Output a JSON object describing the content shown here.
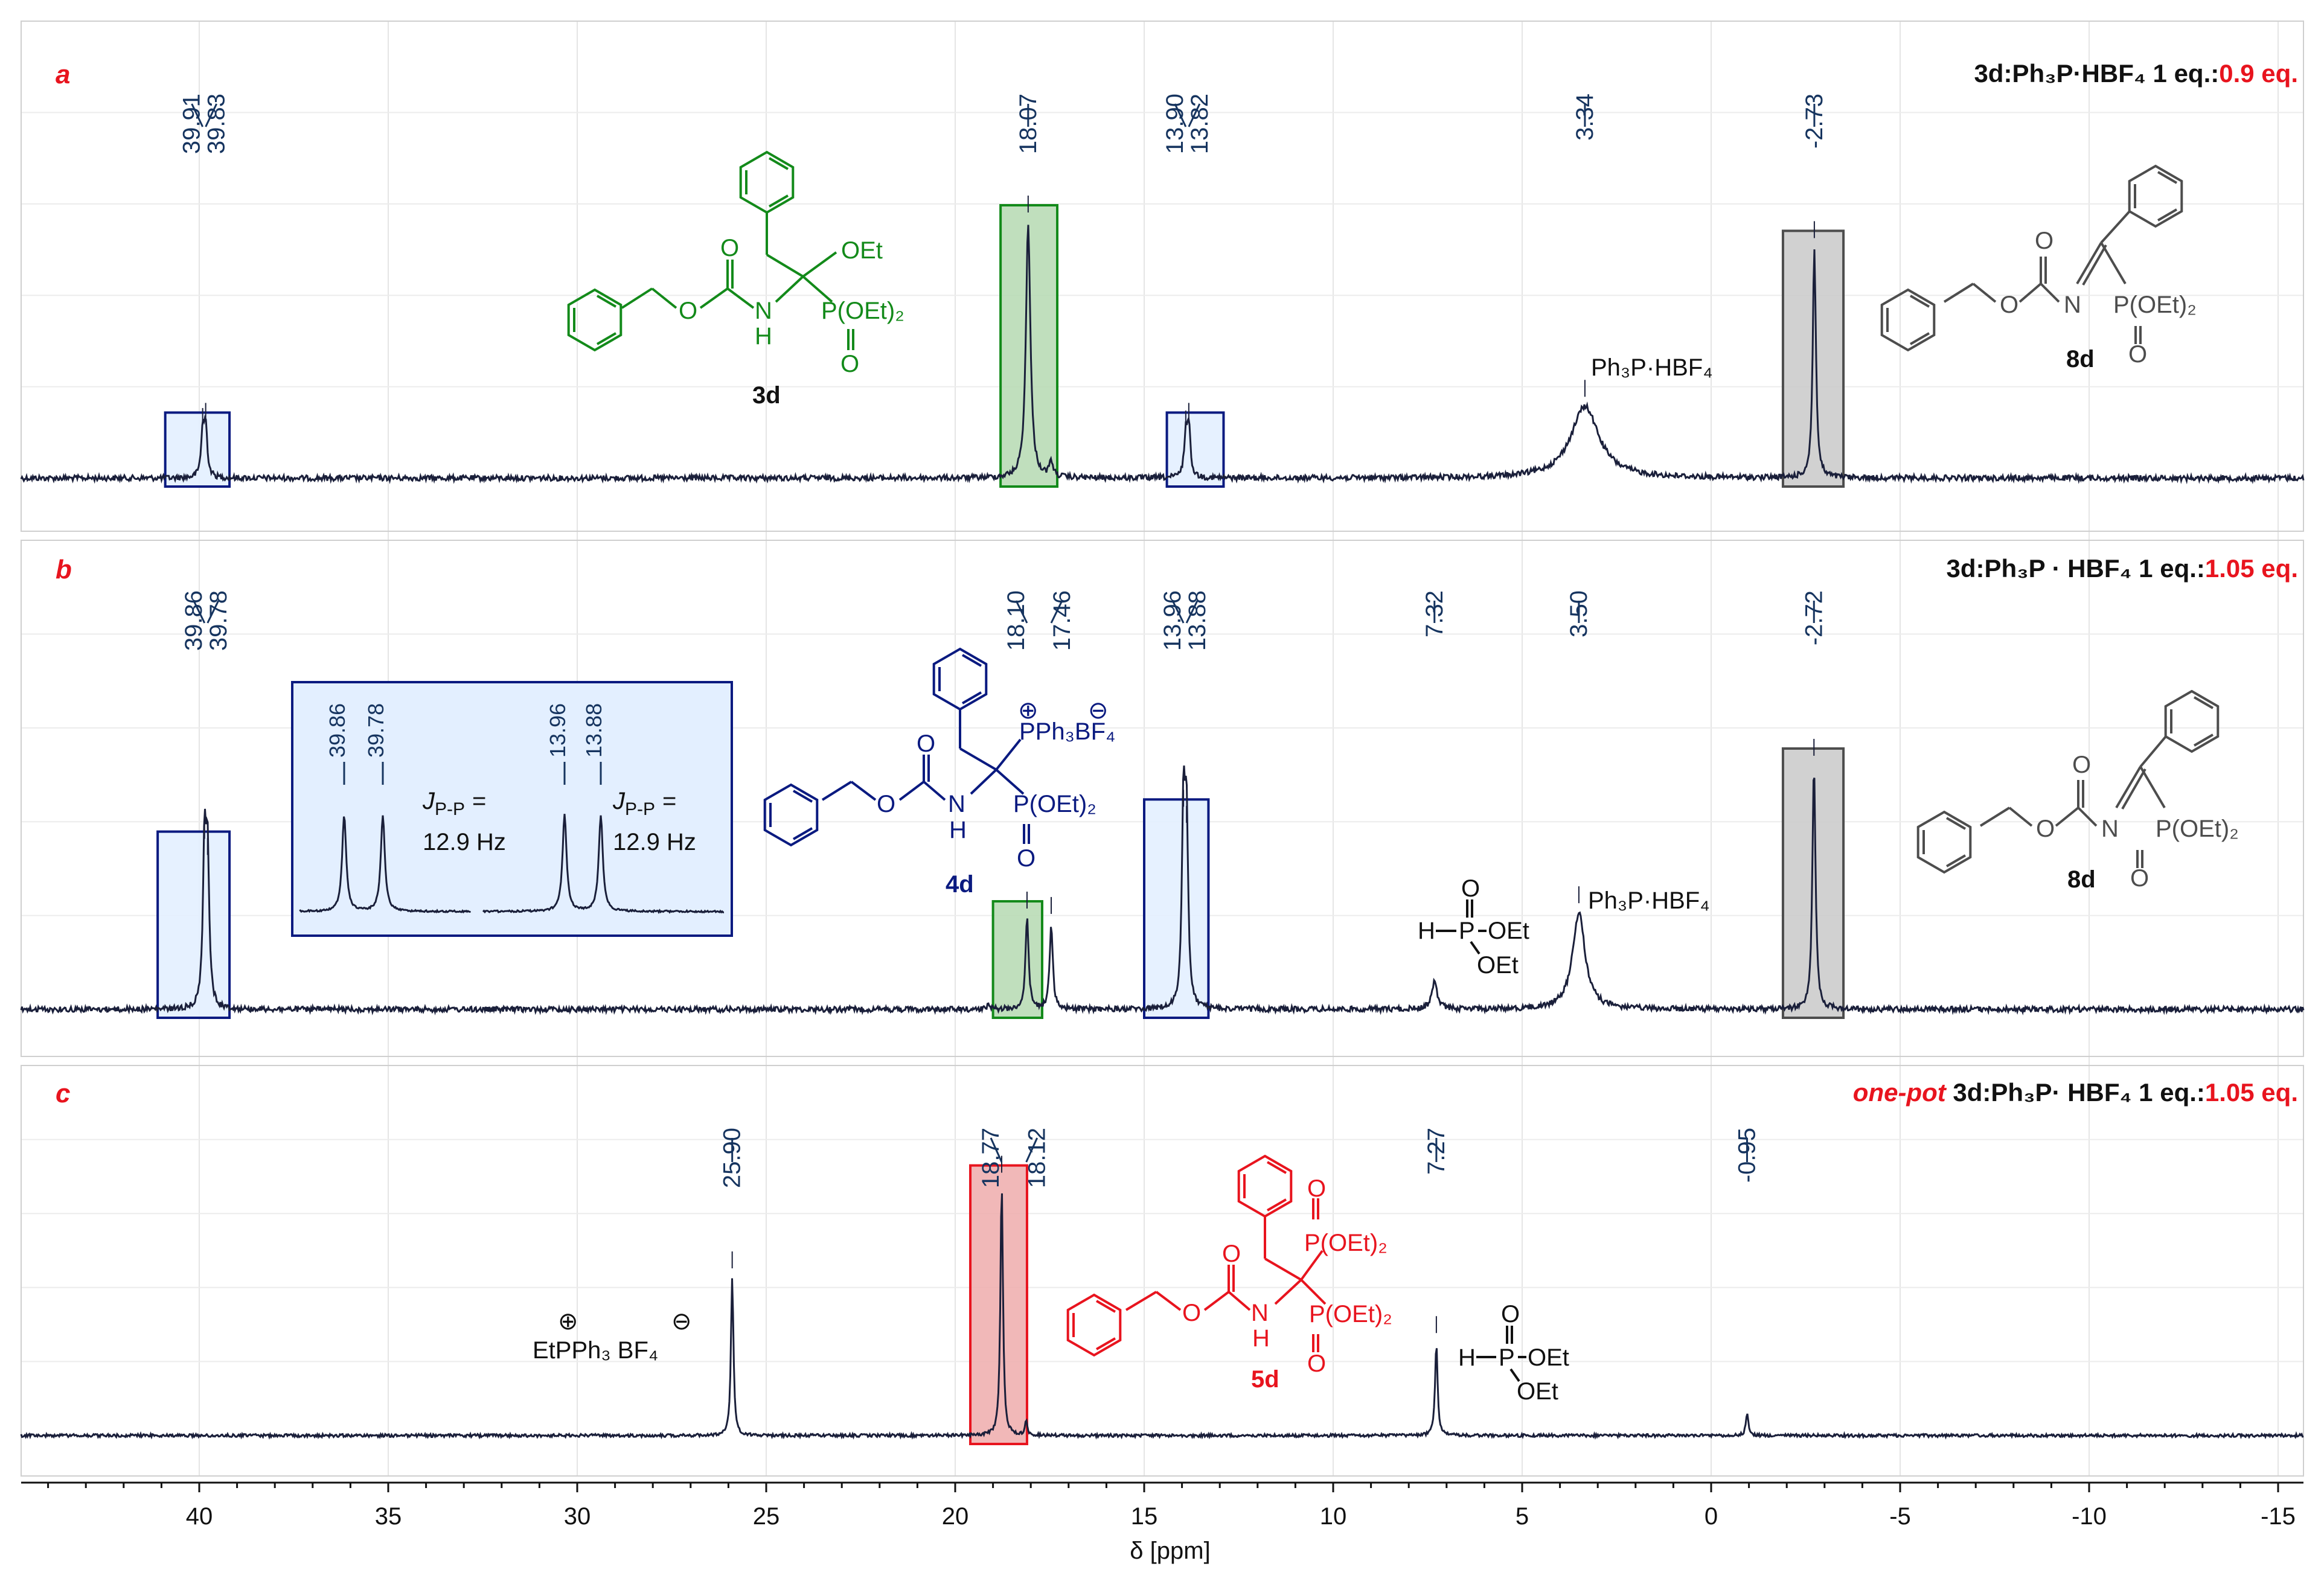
{
  "chart_data": {
    "type": "line",
    "xlabel": "δ [ppm]",
    "xlim": [
      45,
      -16
    ],
    "xticks": [
      "40",
      "35",
      "30",
      "25",
      "20",
      "15",
      "10",
      "5",
      "0",
      "-5",
      "-10",
      "-15"
    ],
    "xtick_values": [
      40,
      35,
      30,
      25,
      20,
      15,
      10,
      5,
      0,
      -5,
      -10,
      -15
    ],
    "grid": true,
    "colors": {
      "trace": "#1a1f3a",
      "navy": "#0a1a80",
      "green": "#138a1a",
      "red": "#e8141e",
      "gray": "#4d4d4d",
      "green_fill": "#b9dcb6",
      "gray_fill": "#cccccc",
      "red_fill": "#f0b0b0",
      "blue_fill": "#e3efff",
      "label_blue": "#16345f"
    },
    "panels": [
      {
        "letter": "a",
        "condition_prefix": "",
        "condition_main": "3d:Ph₃P·HBF₄ 1 eq.:",
        "condition_eq": "0.9 eq.",
        "peak_labels": [
          "39.91",
          "39.83",
          "18.07",
          "13.90",
          "13.82",
          "3.34",
          "-2.73"
        ],
        "peaks": [
          {
            "ppm": 39.91,
            "height": 0.17,
            "width": 0.05
          },
          {
            "ppm": 39.83,
            "height": 0.19,
            "width": 0.05
          },
          {
            "ppm": 18.07,
            "height": 1.0,
            "width": 0.07
          },
          {
            "ppm": 17.46,
            "height": 0.06,
            "width": 0.06
          },
          {
            "ppm": 13.9,
            "height": 0.16,
            "width": 0.05
          },
          {
            "ppm": 13.82,
            "height": 0.19,
            "width": 0.05
          },
          {
            "ppm": 3.34,
            "height": 0.28,
            "width": 0.45
          },
          {
            "ppm": -2.73,
            "height": 0.9,
            "width": 0.05
          }
        ],
        "highlights": [
          {
            "from": 40.9,
            "to": 39.2,
            "style": "blue"
          },
          {
            "from": 18.8,
            "to": 17.3,
            "style": "green"
          },
          {
            "from": 14.4,
            "to": 12.9,
            "style": "blue"
          },
          {
            "from": -1.9,
            "to": -3.5,
            "style": "gray"
          }
        ],
        "annotations": {
          "salt": "Ph₃P·HBF₄"
        },
        "structures": [
          {
            "label": "3d",
            "substituents": [
              "OEt",
              "P(OEt)₂",
              "O",
              "O",
              "O",
              "N",
              "H"
            ]
          },
          {
            "label": "8d",
            "substituents": [
              "O",
              "O",
              "N",
              "P(OEt)₂",
              "O"
            ]
          }
        ]
      },
      {
        "letter": "b",
        "condition_prefix": "",
        "condition_main": "3d:Ph₃P · HBF₄ 1 eq.:",
        "condition_eq": "1.05 eq.",
        "peak_labels": [
          "39.86",
          "39.78",
          "18.10",
          "17.46",
          "13.96",
          "13.88",
          "7.32",
          "3.50",
          "-2.72"
        ],
        "peaks": [
          {
            "ppm": 39.86,
            "height": 0.6,
            "width": 0.05
          },
          {
            "ppm": 39.78,
            "height": 0.54,
            "width": 0.05
          },
          {
            "ppm": 18.1,
            "height": 0.34,
            "width": 0.05
          },
          {
            "ppm": 17.46,
            "height": 0.32,
            "width": 0.05
          },
          {
            "ppm": 19.1,
            "height": 0.02,
            "width": 0.05
          },
          {
            "ppm": 13.96,
            "height": 0.72,
            "width": 0.05
          },
          {
            "ppm": 13.88,
            "height": 0.66,
            "width": 0.05
          },
          {
            "ppm": 7.32,
            "height": 0.1,
            "width": 0.09
          },
          {
            "ppm": 3.5,
            "height": 0.36,
            "width": 0.2
          },
          {
            "ppm": -2.72,
            "height": 0.91,
            "width": 0.05
          }
        ],
        "highlights": [
          {
            "from": 41.1,
            "to": 39.2,
            "style": "blue"
          },
          {
            "from": 19.0,
            "to": 17.7,
            "style": "green"
          },
          {
            "from": 15.0,
            "to": 13.3,
            "style": "blue"
          },
          {
            "from": -1.9,
            "to": -3.5,
            "style": "gray"
          }
        ],
        "annotations": {
          "salt": "Ph₃P·HBF₄",
          "phosphite": [
            "H",
            "P",
            "O",
            "OEt",
            "OEt"
          ]
        },
        "inset": {
          "labels": [
            "39.86",
            "39.78",
            "13.96",
            "13.88"
          ],
          "coupling": [
            {
              "symbol": "J",
              "subscript": "P-P",
              "eq": "=",
              "value": "12.9 Hz"
            },
            {
              "symbol": "J",
              "subscript": "P-P",
              "eq": "=",
              "value": "12.9 Hz"
            }
          ]
        },
        "structures": [
          {
            "label": "4d",
            "substituents": [
              "PPh₃BF₄",
              "P(OEt)₂",
              "O",
              "O",
              "O",
              "N",
              "H",
              "⊕",
              "⊖"
            ]
          },
          {
            "label": "8d",
            "substituents": [
              "O",
              "O",
              "N",
              "P(OEt)₂",
              "O"
            ]
          }
        ]
      },
      {
        "letter": "c",
        "condition_prefix": "one-pot",
        "condition_main": "3d:Ph₃P· HBF₄ 1 eq.:",
        "condition_eq": "1.05 eq.",
        "peak_labels": [
          "25.90",
          "18.77",
          "18.12",
          "7.27",
          "-0.95"
        ],
        "peaks": [
          {
            "ppm": 25.9,
            "height": 0.56,
            "width": 0.04
          },
          {
            "ppm": 18.77,
            "height": 0.9,
            "width": 0.04
          },
          {
            "ppm": 18.12,
            "height": 0.05,
            "width": 0.04
          },
          {
            "ppm": 7.27,
            "height": 0.33,
            "width": 0.04
          },
          {
            "ppm": -0.95,
            "height": 0.08,
            "width": 0.04
          }
        ],
        "highlights": [
          {
            "from": 19.6,
            "to": 18.1,
            "style": "red"
          }
        ],
        "annotations": {
          "salt_label": "EtPPh₃ BF₄",
          "salt_charges": [
            "⊕",
            "⊖"
          ],
          "phosphite": [
            "H",
            "P",
            "O",
            "OEt",
            "OEt"
          ]
        },
        "structures": [
          {
            "label": "5d",
            "substituents": [
              "P(OEt)₂",
              "O",
              "P(OEt)₂",
              "O",
              "O",
              "O",
              "N",
              "H"
            ]
          }
        ]
      }
    ]
  }
}
